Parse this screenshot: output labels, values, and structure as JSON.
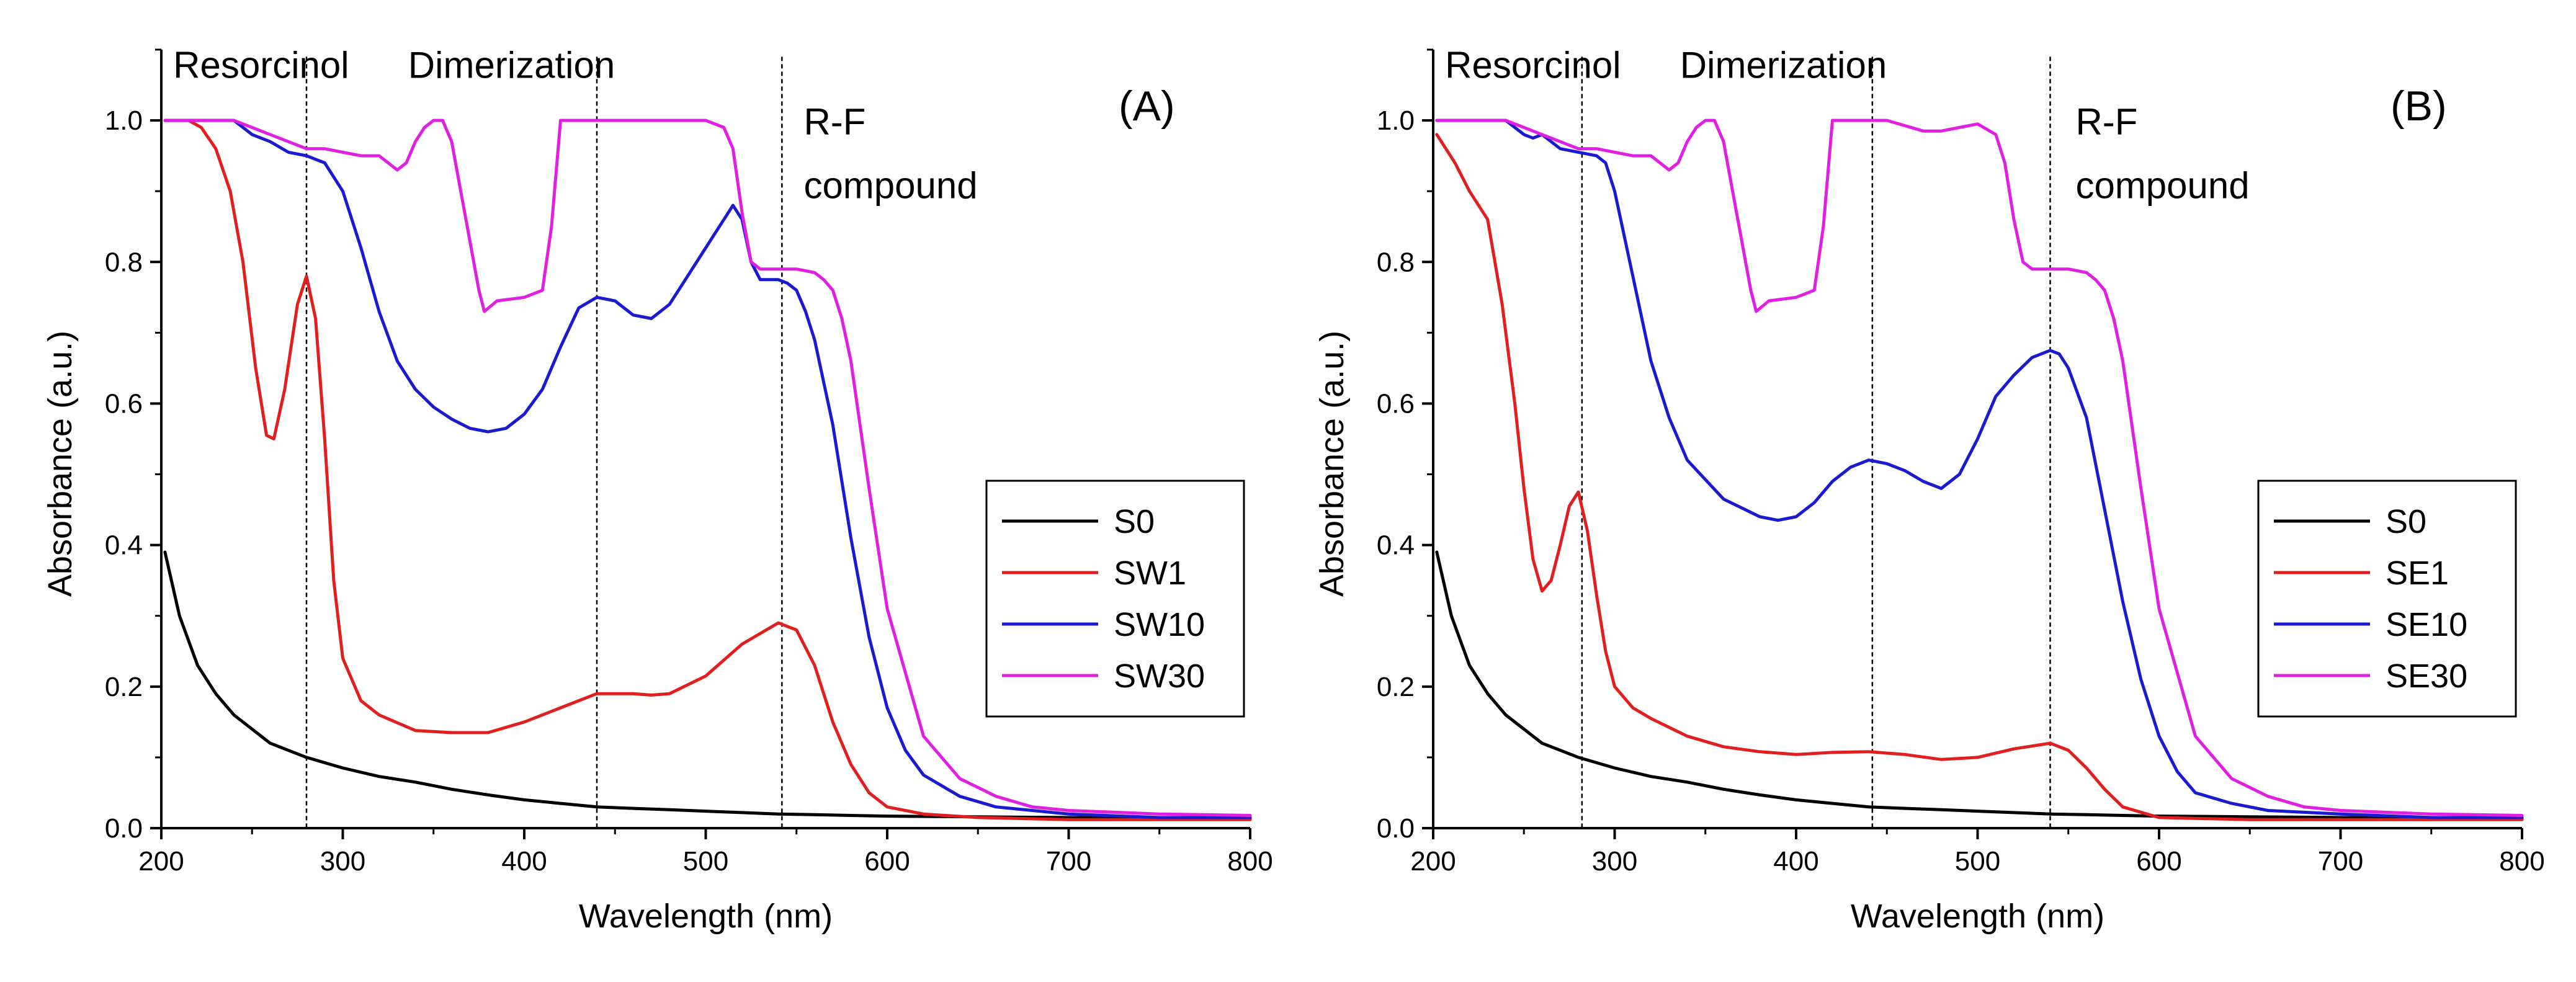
{
  "chart_data": [
    {
      "type": "line",
      "panel_label": "(A)",
      "xlabel": "Wavelength (nm)",
      "ylabel": "Absorbance (a.u.)",
      "xlim": [
        200,
        800
      ],
      "ylim": [
        0,
        1.1
      ],
      "x_ticks": [
        200,
        300,
        400,
        500,
        600,
        700,
        800
      ],
      "x_tick_labels": [
        "200",
        "300",
        "400",
        "500",
        "600",
        "700",
        "800"
      ],
      "y_ticks": [
        0,
        0.2,
        0.4,
        0.6,
        0.8,
        1.0
      ],
      "y_tick_labels": [
        "0.0",
        "0.2",
        "0.4",
        "0.6",
        "0.8",
        "1.0"
      ],
      "legend_position": "right-middle",
      "ref_lines": [
        280,
        440,
        542
      ],
      "annotations": [
        {
          "text": "Resorcinol",
          "x": 255,
          "y": 1.06
        },
        {
          "text": "Dimerization",
          "x": 393,
          "y": 1.06
        },
        {
          "text": "R-F",
          "x": 554,
          "y": 0.98
        },
        {
          "text": "compound",
          "x": 554,
          "y": 0.89
        }
      ],
      "series": [
        {
          "name": "S0",
          "color": "#000000",
          "x": [
            202,
            210,
            220,
            230,
            240,
            260,
            280,
            300,
            320,
            340,
            360,
            380,
            400,
            420,
            440,
            460,
            480,
            500,
            520,
            540,
            560,
            580,
            600,
            650,
            700,
            750,
            800
          ],
          "values": [
            0.39,
            0.3,
            0.23,
            0.19,
            0.16,
            0.12,
            0.1,
            0.085,
            0.073,
            0.065,
            0.055,
            0.047,
            0.04,
            0.035,
            0.03,
            0.028,
            0.026,
            0.024,
            0.022,
            0.02,
            0.019,
            0.018,
            0.017,
            0.016,
            0.015,
            0.014,
            0.014
          ]
        },
        {
          "name": "SW1",
          "color": "#e02020",
          "x": [
            202,
            215,
            222,
            230,
            238,
            245,
            252,
            258,
            262,
            268,
            275,
            280,
            285,
            290,
            295,
            300,
            310,
            320,
            340,
            360,
            380,
            400,
            420,
            440,
            460,
            470,
            480,
            500,
            520,
            540,
            550,
            560,
            570,
            580,
            590,
            600,
            620,
            650,
            700,
            750,
            800
          ],
          "values": [
            1.0,
            1.0,
            0.99,
            0.96,
            0.9,
            0.8,
            0.65,
            0.555,
            0.55,
            0.62,
            0.74,
            0.78,
            0.72,
            0.55,
            0.35,
            0.24,
            0.18,
            0.16,
            0.138,
            0.135,
            0.135,
            0.15,
            0.17,
            0.19,
            0.19,
            0.188,
            0.19,
            0.215,
            0.26,
            0.29,
            0.28,
            0.23,
            0.15,
            0.09,
            0.05,
            0.03,
            0.02,
            0.015,
            0.012,
            0.012,
            0.012
          ]
        },
        {
          "name": "SW10",
          "color": "#1a1ad0",
          "x": [
            202,
            240,
            250,
            260,
            270,
            280,
            290,
            300,
            310,
            320,
            330,
            340,
            350,
            360,
            370,
            380,
            390,
            400,
            410,
            420,
            430,
            440,
            450,
            460,
            470,
            480,
            490,
            500,
            510,
            515,
            520,
            525,
            530,
            540,
            545,
            550,
            555,
            560,
            570,
            580,
            590,
            600,
            610,
            620,
            640,
            660,
            700,
            750,
            800
          ],
          "values": [
            1.0,
            1.0,
            0.98,
            0.97,
            0.955,
            0.95,
            0.94,
            0.9,
            0.82,
            0.73,
            0.66,
            0.62,
            0.595,
            0.578,
            0.565,
            0.56,
            0.565,
            0.585,
            0.62,
            0.68,
            0.735,
            0.75,
            0.745,
            0.725,
            0.72,
            0.74,
            0.78,
            0.82,
            0.86,
            0.88,
            0.86,
            0.8,
            0.775,
            0.775,
            0.77,
            0.76,
            0.73,
            0.69,
            0.57,
            0.41,
            0.27,
            0.17,
            0.11,
            0.075,
            0.045,
            0.03,
            0.02,
            0.015,
            0.015
          ]
        },
        {
          "name": "SW30",
          "color": "#e020e0",
          "x": [
            202,
            240,
            250,
            260,
            270,
            280,
            290,
            300,
            310,
            320,
            330,
            335,
            340,
            345,
            350,
            355,
            360,
            365,
            370,
            375,
            378,
            385,
            400,
            410,
            415,
            420,
            430,
            440,
            450,
            500,
            510,
            515,
            520,
            525,
            530,
            540,
            550,
            560,
            565,
            570,
            575,
            580,
            590,
            600,
            620,
            640,
            660,
            680,
            700,
            750,
            800
          ],
          "values": [
            1.0,
            1.0,
            0.99,
            0.98,
            0.97,
            0.96,
            0.96,
            0.955,
            0.95,
            0.95,
            0.93,
            0.94,
            0.97,
            0.99,
            1.0,
            1.0,
            0.97,
            0.9,
            0.83,
            0.76,
            0.73,
            0.745,
            0.75,
            0.76,
            0.85,
            1.0,
            1.0,
            1.0,
            1.0,
            1.0,
            0.99,
            0.96,
            0.87,
            0.8,
            0.79,
            0.79,
            0.79,
            0.785,
            0.775,
            0.76,
            0.72,
            0.66,
            0.48,
            0.31,
            0.13,
            0.07,
            0.045,
            0.03,
            0.025,
            0.02,
            0.018
          ]
        }
      ]
    },
    {
      "type": "line",
      "panel_label": "(B)",
      "xlabel": "Wavelength (nm)",
      "ylabel": "Absorbance (a.u.)",
      "xlim": [
        200,
        800
      ],
      "ylim": [
        0,
        1.1
      ],
      "x_ticks": [
        200,
        300,
        400,
        500,
        600,
        700,
        800
      ],
      "x_tick_labels": [
        "200",
        "300",
        "400",
        "500",
        "600",
        "700",
        "800"
      ],
      "y_ticks": [
        0,
        0.2,
        0.4,
        0.6,
        0.8,
        1.0
      ],
      "y_tick_labels": [
        "0.0",
        "0.2",
        "0.4",
        "0.6",
        "0.8",
        "1.0"
      ],
      "legend_position": "right-middle",
      "ref_lines": [
        282,
        442,
        540
      ],
      "annotations": [
        {
          "text": "Resorcinol",
          "x": 255,
          "y": 1.06
        },
        {
          "text": "Dimerization",
          "x": 393,
          "y": 1.06
        },
        {
          "text": "R-F",
          "x": 554,
          "y": 0.98
        },
        {
          "text": "compound",
          "x": 554,
          "y": 0.89
        }
      ],
      "series": [
        {
          "name": "S0",
          "color": "#000000",
          "x": [
            202,
            210,
            220,
            230,
            240,
            260,
            280,
            300,
            320,
            340,
            360,
            380,
            400,
            420,
            440,
            460,
            480,
            500,
            520,
            540,
            560,
            580,
            600,
            650,
            700,
            750,
            800
          ],
          "values": [
            0.39,
            0.3,
            0.23,
            0.19,
            0.16,
            0.12,
            0.1,
            0.085,
            0.073,
            0.065,
            0.055,
            0.047,
            0.04,
            0.035,
            0.03,
            0.028,
            0.026,
            0.024,
            0.022,
            0.02,
            0.019,
            0.018,
            0.017,
            0.016,
            0.015,
            0.014,
            0.014
          ]
        },
        {
          "name": "SE1",
          "color": "#e02020",
          "x": [
            202,
            212,
            220,
            230,
            238,
            245,
            250,
            255,
            260,
            265,
            270,
            275,
            280,
            285,
            290,
            295,
            300,
            310,
            320,
            340,
            360,
            380,
            400,
            420,
            440,
            460,
            480,
            500,
            520,
            540,
            550,
            560,
            570,
            580,
            600,
            650,
            700,
            750,
            800
          ],
          "values": [
            0.98,
            0.94,
            0.9,
            0.86,
            0.74,
            0.6,
            0.48,
            0.38,
            0.335,
            0.35,
            0.4,
            0.455,
            0.475,
            0.42,
            0.33,
            0.25,
            0.2,
            0.17,
            0.155,
            0.13,
            0.115,
            0.108,
            0.104,
            0.107,
            0.108,
            0.104,
            0.097,
            0.1,
            0.112,
            0.12,
            0.11,
            0.085,
            0.055,
            0.03,
            0.015,
            0.012,
            0.012,
            0.012,
            0.012
          ]
        },
        {
          "name": "SE10",
          "color": "#1a1ad0",
          "x": [
            202,
            240,
            250,
            255,
            260,
            265,
            270,
            280,
            290,
            295,
            300,
            310,
            320,
            330,
            340,
            360,
            380,
            390,
            400,
            410,
            420,
            430,
            440,
            450,
            460,
            470,
            480,
            490,
            500,
            510,
            520,
            530,
            540,
            545,
            550,
            560,
            570,
            580,
            590,
            600,
            610,
            620,
            640,
            660,
            700,
            750,
            800
          ],
          "values": [
            1.0,
            1.0,
            0.98,
            0.975,
            0.98,
            0.97,
            0.96,
            0.955,
            0.95,
            0.94,
            0.9,
            0.78,
            0.66,
            0.58,
            0.52,
            0.465,
            0.44,
            0.435,
            0.44,
            0.46,
            0.49,
            0.51,
            0.52,
            0.515,
            0.505,
            0.49,
            0.48,
            0.5,
            0.55,
            0.61,
            0.64,
            0.665,
            0.675,
            0.67,
            0.65,
            0.58,
            0.45,
            0.32,
            0.21,
            0.13,
            0.08,
            0.05,
            0.035,
            0.025,
            0.02,
            0.015,
            0.015
          ]
        },
        {
          "name": "SE30",
          "color": "#e020e0",
          "x": [
            202,
            240,
            250,
            260,
            270,
            280,
            290,
            300,
            310,
            320,
            330,
            335,
            340,
            345,
            350,
            355,
            360,
            365,
            370,
            375,
            378,
            385,
            400,
            410,
            415,
            420,
            430,
            440,
            450,
            470,
            480,
            490,
            500,
            510,
            515,
            520,
            525,
            530,
            540,
            550,
            560,
            565,
            570,
            575,
            580,
            590,
            600,
            620,
            640,
            660,
            680,
            700,
            750,
            800
          ],
          "values": [
            1.0,
            1.0,
            0.99,
            0.98,
            0.97,
            0.96,
            0.96,
            0.955,
            0.95,
            0.95,
            0.93,
            0.94,
            0.97,
            0.99,
            1.0,
            1.0,
            0.97,
            0.9,
            0.83,
            0.76,
            0.73,
            0.745,
            0.75,
            0.76,
            0.85,
            1.0,
            1.0,
            1.0,
            1.0,
            0.985,
            0.985,
            0.99,
            0.995,
            0.98,
            0.94,
            0.86,
            0.8,
            0.79,
            0.79,
            0.79,
            0.785,
            0.775,
            0.76,
            0.72,
            0.66,
            0.48,
            0.31,
            0.13,
            0.07,
            0.045,
            0.03,
            0.025,
            0.02,
            0.018
          ]
        }
      ]
    }
  ]
}
